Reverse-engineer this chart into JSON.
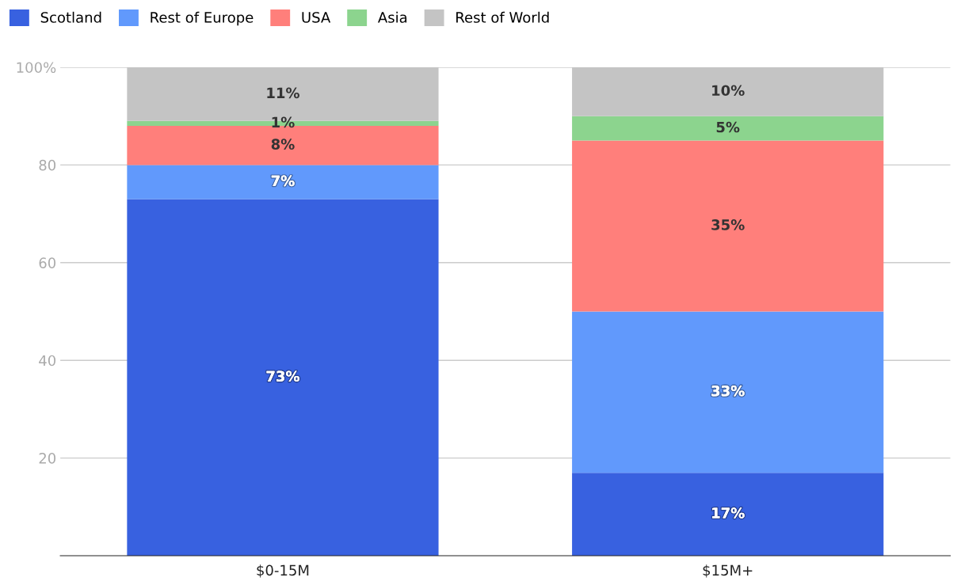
{
  "chart_data": {
    "type": "bar",
    "stacked": true,
    "categories": [
      "$0-15M",
      "$15M+"
    ],
    "series": [
      {
        "name": "Scotland",
        "color": "#3861e0",
        "values": [
          73,
          17
        ],
        "value_labels": [
          "73%",
          "17%"
        ]
      },
      {
        "name": "Rest of Europe",
        "color": "#6199fc",
        "values": [
          7,
          33
        ],
        "value_labels": [
          "7%",
          "33%"
        ]
      },
      {
        "name": "USA",
        "color": "#ff7f7b",
        "values": [
          8,
          35
        ],
        "value_labels": [
          "8%",
          "35%"
        ]
      },
      {
        "name": "Asia",
        "color": "#8cd48e",
        "values": [
          1,
          5
        ],
        "value_labels": [
          "1%",
          "5%"
        ]
      },
      {
        "name": "Rest of World",
        "color": "#c4c4c4",
        "values": [
          11,
          10
        ],
        "value_labels": [
          "11%",
          "10%"
        ]
      }
    ],
    "ylim": [
      0,
      100
    ],
    "yticks": [
      20,
      40,
      60,
      80,
      {
        "value": 100,
        "label": "100%"
      }
    ],
    "grid": "y",
    "legend": "top left"
  }
}
